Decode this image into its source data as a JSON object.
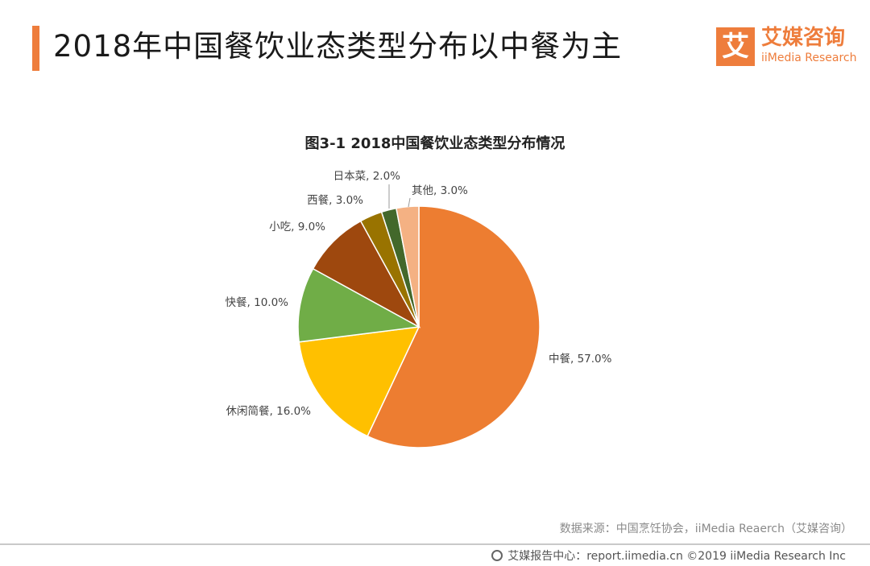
{
  "header": {
    "title": "2018年中国餐饮业态类型分布以中餐为主",
    "accent_color": "#ee7d3c"
  },
  "logo": {
    "mark": "艾",
    "name_cn": "艾媒咨询",
    "name_en": "iiMedia Research"
  },
  "chart_title": "图3-1  2018中国餐饮业态类型分布情况",
  "chart_data": {
    "type": "pie",
    "title": "图3-1  2018中国餐饮业态类型分布情况",
    "slices": [
      {
        "label": "中餐, 57.0%",
        "name": "中餐",
        "value": 57.0,
        "color": "#ed7d31"
      },
      {
        "label": "休闲简餐, 16.0%",
        "name": "休闲简餐",
        "value": 16.0,
        "color": "#ffc000"
      },
      {
        "label": "快餐, 10.0%",
        "name": "快餐",
        "value": 10.0,
        "color": "#70ad47"
      },
      {
        "label": "小吃, 9.0%",
        "name": "小吃",
        "value": 9.0,
        "color": "#9e480e"
      },
      {
        "label": "西餐, 3.0%",
        "name": "西餐",
        "value": 3.0,
        "color": "#997300"
      },
      {
        "label": "日本菜, 2.0%",
        "name": "日本菜",
        "value": 2.0,
        "color": "#43682b"
      },
      {
        "label": "其他, 3.0%",
        "name": "其他",
        "value": 3.0,
        "color": "#f4b183"
      }
    ],
    "start_angle_deg": 0,
    "direction": "clockwise"
  },
  "source_text": "数据来源：中国烹饪协会，iiMedia Reaerch（艾媒咨询）",
  "footer": {
    "text": "艾媒报告中心：report.iimedia.cn  ©2019  iiMedia Research  Inc"
  }
}
